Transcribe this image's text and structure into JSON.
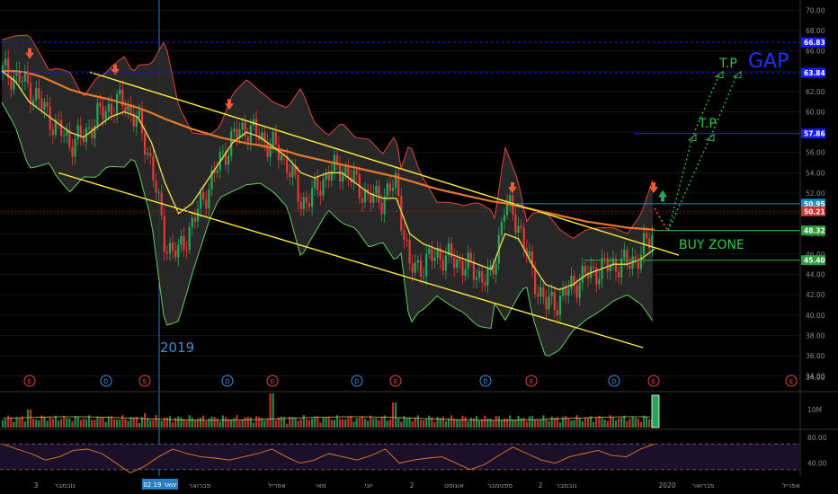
{
  "chart_data": {
    "type": "candlestick",
    "price_axis": {
      "ylim": [
        33,
        71
      ],
      "ticks": [
        70,
        68,
        66,
        64,
        62,
        60,
        58,
        56,
        54,
        52,
        50,
        48,
        46,
        44,
        42,
        40,
        38,
        36,
        34
      ],
      "tick_labels": [
        "70.00",
        "68.00",
        "66.00",
        "64.00",
        "62.00",
        "60.00",
        "58.00",
        "56.00",
        "54.00",
        "52.00",
        "50.00",
        "48.00",
        "46.00",
        "44.00",
        "42.00",
        "40.00",
        "38.00",
        "36.00",
        "34.00"
      ]
    },
    "price_markers": [
      {
        "value": 66.83,
        "label": "66.83",
        "color": "#1a1aff"
      },
      {
        "value": 63.84,
        "label": "63.84",
        "color": "#1a1aff"
      },
      {
        "value": 57.86,
        "label": "57.86",
        "color": "#1a1aff"
      },
      {
        "value": 50.95,
        "label": "50.95",
        "color": "#1e90c0"
      },
      {
        "value": 50.21,
        "label": "50.21",
        "color": "#d32f2f"
      },
      {
        "value": 48.32,
        "label": "48.32",
        "color": "#2e9d3a"
      },
      {
        "value": 45.4,
        "label": "45.40",
        "color": "#2e9d3a"
      }
    ],
    "time_labels": [
      "3",
      "נובמבר",
      "02 ינואר 19",
      "פברואר",
      "אפריל",
      "מאי",
      "יוני",
      "2",
      "אוגוסט",
      "ספטמבר",
      "2",
      "נובמבר",
      "2020",
      "פברואר",
      "אפריל"
    ],
    "highlighted_time_label": "02 ינואר 19",
    "annotations": {
      "year_label": "2019",
      "buy_zone": "BUY ZONE",
      "tp_labels": [
        "T.P",
        "T.P"
      ],
      "gap_label": "GAP"
    },
    "event_markers": [
      "E",
      "D",
      "E",
      "D",
      "E",
      "D",
      "E",
      "D",
      "E",
      "D",
      "E",
      "E"
    ],
    "volume_axis": {
      "label": "10M"
    },
    "rsi_axis": {
      "ylim": [
        20,
        90
      ],
      "tick_labels": [
        "80.00",
        "40.00"
      ],
      "bands": [
        70,
        30
      ]
    },
    "series": [
      {
        "name": "price-close",
        "values": [
          64,
          63.5,
          62.5,
          60.5,
          58.5,
          57.0,
          57.5,
          59.5,
          60.5,
          61.0,
          59.0,
          55.0,
          47.0,
          46.0,
          49.0,
          52.0,
          55.0,
          57.5,
          58.5,
          57.5,
          56.5,
          55.0,
          51.0,
          52.0,
          54.0,
          54.5,
          53.0,
          51.5,
          51.5,
          53.0,
          44.5,
          45.0,
          46.0,
          45.5,
          45.0,
          44.0,
          43.5,
          51.0,
          49.0,
          44.0,
          41.0,
          41.5,
          43.0,
          44.0,
          44.5,
          45.0,
          45.0,
          46.0,
          48.5
        ]
      },
      {
        "name": "sma-200",
        "values": [
          64.0,
          64.0,
          63.8,
          63.4,
          62.8,
          62.2,
          61.8,
          61.5,
          61.2,
          60.8,
          60.4,
          59.9,
          59.3,
          58.8,
          58.3,
          57.9,
          57.5,
          57.2,
          56.9,
          56.7,
          56.4,
          56.1,
          55.7,
          55.4,
          55.1,
          54.8,
          54.5,
          54.2,
          53.9,
          53.6,
          53.2,
          52.8,
          52.4,
          52.1,
          51.8,
          51.5,
          51.2,
          51.0,
          50.7,
          50.4,
          50.1,
          49.8,
          49.5,
          49.2,
          49.0,
          48.8,
          48.6,
          48.5,
          48.4
        ]
      },
      {
        "name": "bb-basis",
        "values": [
          64.0,
          63.0,
          61.0,
          60.0,
          59.0,
          58.0,
          57.5,
          58.5,
          59.5,
          60.0,
          59.5,
          57.0,
          53.0,
          50.0,
          51.0,
          53.0,
          55.0,
          57.0,
          58.0,
          57.5,
          56.5,
          55.5,
          54.0,
          53.5,
          54.0,
          54.0,
          53.0,
          52.0,
          51.5,
          51.5,
          48.0,
          47.0,
          46.5,
          46.0,
          45.5,
          45.0,
          44.5,
          48.0,
          47.5,
          45.0,
          43.0,
          42.5,
          43.0,
          44.0,
          44.5,
          45.0,
          45.0,
          45.5,
          46.5
        ]
      },
      {
        "name": "rsi",
        "values": [
          70,
          62,
          55,
          45,
          50,
          60,
          62,
          55,
          40,
          25,
          35,
          50,
          62,
          55,
          50,
          48,
          45,
          50,
          55,
          62,
          50,
          40,
          45,
          55,
          50,
          45,
          52,
          62,
          40,
          45,
          48,
          50,
          40,
          30,
          38,
          52,
          65,
          55,
          45,
          40,
          50,
          55,
          60,
          52,
          50,
          62,
          70
        ]
      }
    ]
  }
}
